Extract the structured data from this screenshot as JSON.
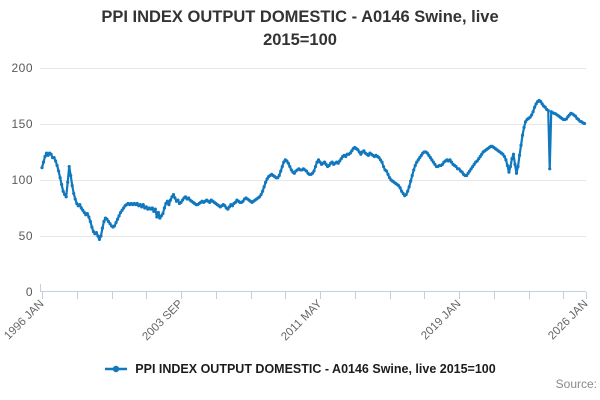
{
  "title": {
    "line1": "PPI INDEX OUTPUT DOMESTIC - A0146 Swine, live",
    "line2": "2015=100"
  },
  "legend": {
    "label": "PPI INDEX OUTPUT DOMESTIC - A0146 Swine, live 2015=100",
    "marker": "line-dot-icon"
  },
  "source_label": "Source:",
  "colors": {
    "line": "#1178be",
    "grid": "#e6e6e6",
    "axis": "#c2cfdf",
    "y_tick_label": "#595959",
    "x_tick_label": "#666666",
    "title": "#333333",
    "legend_text": "#1c1c1c",
    "source": "#8a8a8a"
  },
  "chart_data": {
    "type": "line",
    "title": "PPI INDEX OUTPUT DOMESTIC - A0146 Swine, live 2015=100",
    "frequency": "monthly",
    "x_start": "1996-01",
    "x_end": "2025-12",
    "ylim": [
      0,
      200
    ],
    "y_ticks": [
      0,
      50,
      100,
      150,
      200
    ],
    "x_total_months": 360,
    "x_tick_labels": [
      {
        "month_index": 0,
        "label": "1996 JAN"
      },
      {
        "month_index": 92,
        "label": "2003 SEP"
      },
      {
        "month_index": 184,
        "label": "2011 MAY"
      },
      {
        "month_index": 276,
        "label": "2019 JAN"
      },
      {
        "month_index": 360,
        "label": "2026 JAN"
      }
    ],
    "minor_tick_every_months": 23,
    "grid": "horizontal",
    "legend_position": "bottom",
    "series": [
      {
        "name": "PPI INDEX OUTPUT DOMESTIC - A0146 Swine, live 2015=100",
        "values": [
          111,
          116,
          121,
          124,
          122,
          124,
          123,
          120,
          120,
          117,
          113,
          108,
          102,
          96,
          90,
          87,
          85,
          98,
          112,
          104,
          95,
          88,
          83,
          79,
          77,
          78,
          75,
          73,
          71,
          69,
          70,
          67,
          63,
          58,
          54,
          52,
          53,
          50,
          47,
          50,
          57,
          63,
          66,
          65,
          63,
          61,
          59,
          58,
          59,
          62,
          65,
          68,
          71,
          73,
          75,
          77,
          78,
          79,
          78,
          79,
          78,
          79,
          78,
          79,
          77,
          78,
          76,
          78,
          75,
          76,
          74,
          75,
          74,
          75,
          72,
          74,
          67,
          71,
          66,
          68,
          70,
          75,
          79,
          81,
          78,
          82,
          85,
          87,
          84,
          81,
          82,
          79,
          80,
          82,
          84,
          85,
          83,
          84,
          82,
          81,
          80,
          79,
          78,
          78,
          79,
          80,
          81,
          80,
          81,
          82,
          81,
          80,
          82,
          81,
          80,
          79,
          78,
          77,
          76,
          77,
          78,
          77,
          75,
          74,
          76,
          78,
          77,
          79,
          80,
          82,
          81,
          80,
          80,
          81,
          83,
          84,
          83,
          82,
          81,
          80,
          81,
          82,
          83,
          84,
          85,
          87,
          90,
          94,
          98,
          101,
          103,
          104,
          105,
          104,
          103,
          102,
          102,
          104,
          108,
          112,
          116,
          118,
          117,
          115,
          112,
          109,
          107,
          106,
          108,
          109,
          110,
          109,
          109,
          110,
          109,
          108,
          106,
          105,
          105,
          106,
          108,
          112,
          116,
          118,
          116,
          114,
          115,
          116,
          114,
          112,
          113,
          115,
          116,
          114,
          115,
          116,
          115,
          117,
          119,
          121,
          122,
          121,
          123,
          123,
          124,
          126,
          128,
          129,
          128,
          127,
          125,
          123,
          125,
          126,
          124,
          123,
          122,
          124,
          123,
          122,
          121,
          122,
          121,
          120,
          118,
          116,
          112,
          109,
          108,
          105,
          102,
          100,
          99,
          98,
          97,
          96,
          95,
          93,
          90,
          88,
          86,
          87,
          90,
          94,
          99,
          104,
          109,
          113,
          116,
          118,
          120,
          122,
          124,
          125,
          125,
          124,
          122,
          120,
          118,
          116,
          114,
          112,
          112,
          113,
          113,
          114,
          116,
          117,
          118,
          117,
          118,
          116,
          114,
          113,
          112,
          110,
          110,
          108,
          107,
          105,
          104,
          104,
          106,
          108,
          110,
          112,
          114,
          116,
          117,
          119,
          121,
          123,
          125,
          126,
          127,
          128,
          129,
          130,
          130,
          129,
          128,
          127,
          126,
          125,
          124,
          123,
          121,
          118,
          113,
          107,
          112,
          119,
          123,
          114,
          106,
          112,
          122,
          131,
          140,
          147,
          152,
          154,
          155,
          156,
          158,
          161,
          165,
          168,
          170,
          171,
          170,
          168,
          166,
          165,
          163,
          162,
          110,
          161,
          160,
          159.5,
          159,
          158,
          157,
          156,
          155,
          154,
          154,
          154.5,
          156.5,
          158,
          159.5,
          159,
          158,
          157,
          155,
          154,
          152.5,
          152,
          151,
          150.5
        ]
      }
    ]
  }
}
